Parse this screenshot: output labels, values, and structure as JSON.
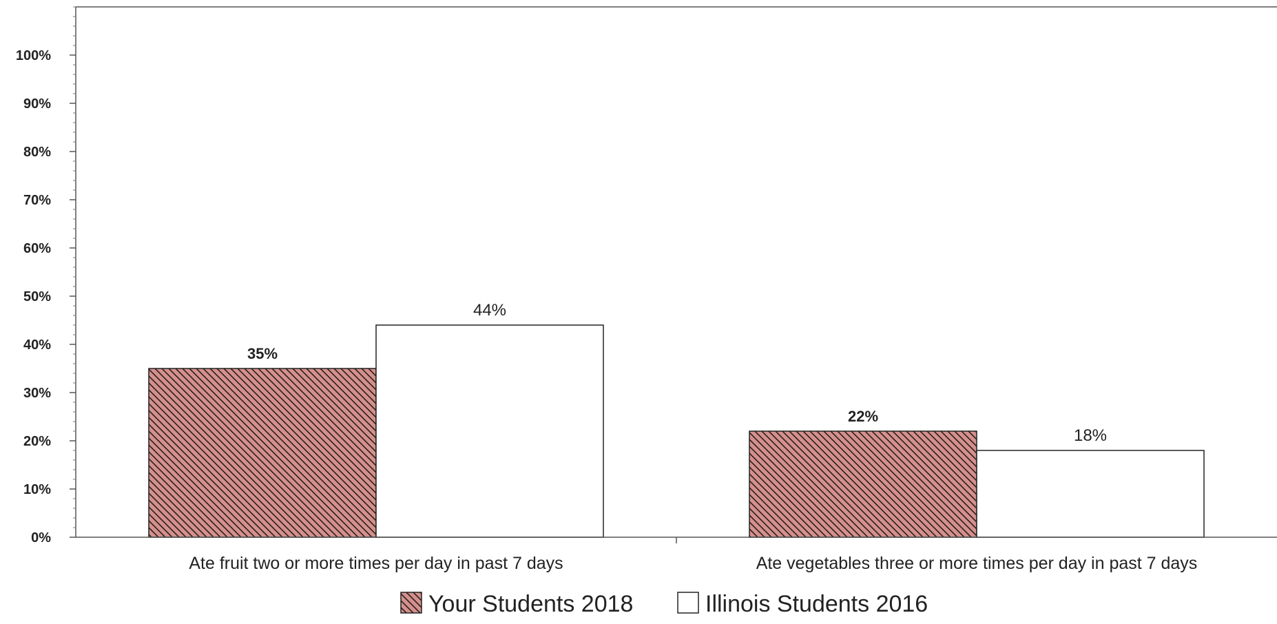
{
  "chart_data": {
    "type": "bar",
    "categories": [
      "Ate fruit two or more times per day in past 7 days",
      "Ate vegetables three or more times per day in past 7 days"
    ],
    "series": [
      {
        "name": "Your Students 2018",
        "values": [
          35,
          22
        ],
        "labels": [
          "35%",
          "22%"
        ],
        "color": "#d4908c",
        "pattern": "diagonal-hatch"
      },
      {
        "name": "Illinois Students 2016",
        "values": [
          44,
          18
        ],
        "labels": [
          "44%",
          "18%"
        ],
        "color": "#ffffff",
        "pattern": "none"
      }
    ],
    "ylim": [
      0,
      110
    ],
    "yticks": [
      {
        "value": 0,
        "label": "0%"
      },
      {
        "value": 10,
        "label": "10%"
      },
      {
        "value": 20,
        "label": "20%"
      },
      {
        "value": 30,
        "label": "30%"
      },
      {
        "value": 40,
        "label": "40%"
      },
      {
        "value": 50,
        "label": "50%"
      },
      {
        "value": 60,
        "label": "60%"
      },
      {
        "value": 70,
        "label": "70%"
      },
      {
        "value": 80,
        "label": "80%"
      },
      {
        "value": 90,
        "label": "90%"
      },
      {
        "value": 100,
        "label": "100%"
      }
    ],
    "title": "",
    "xlabel": "",
    "ylabel": "",
    "legend_position": "bottom-center",
    "grid": false
  }
}
